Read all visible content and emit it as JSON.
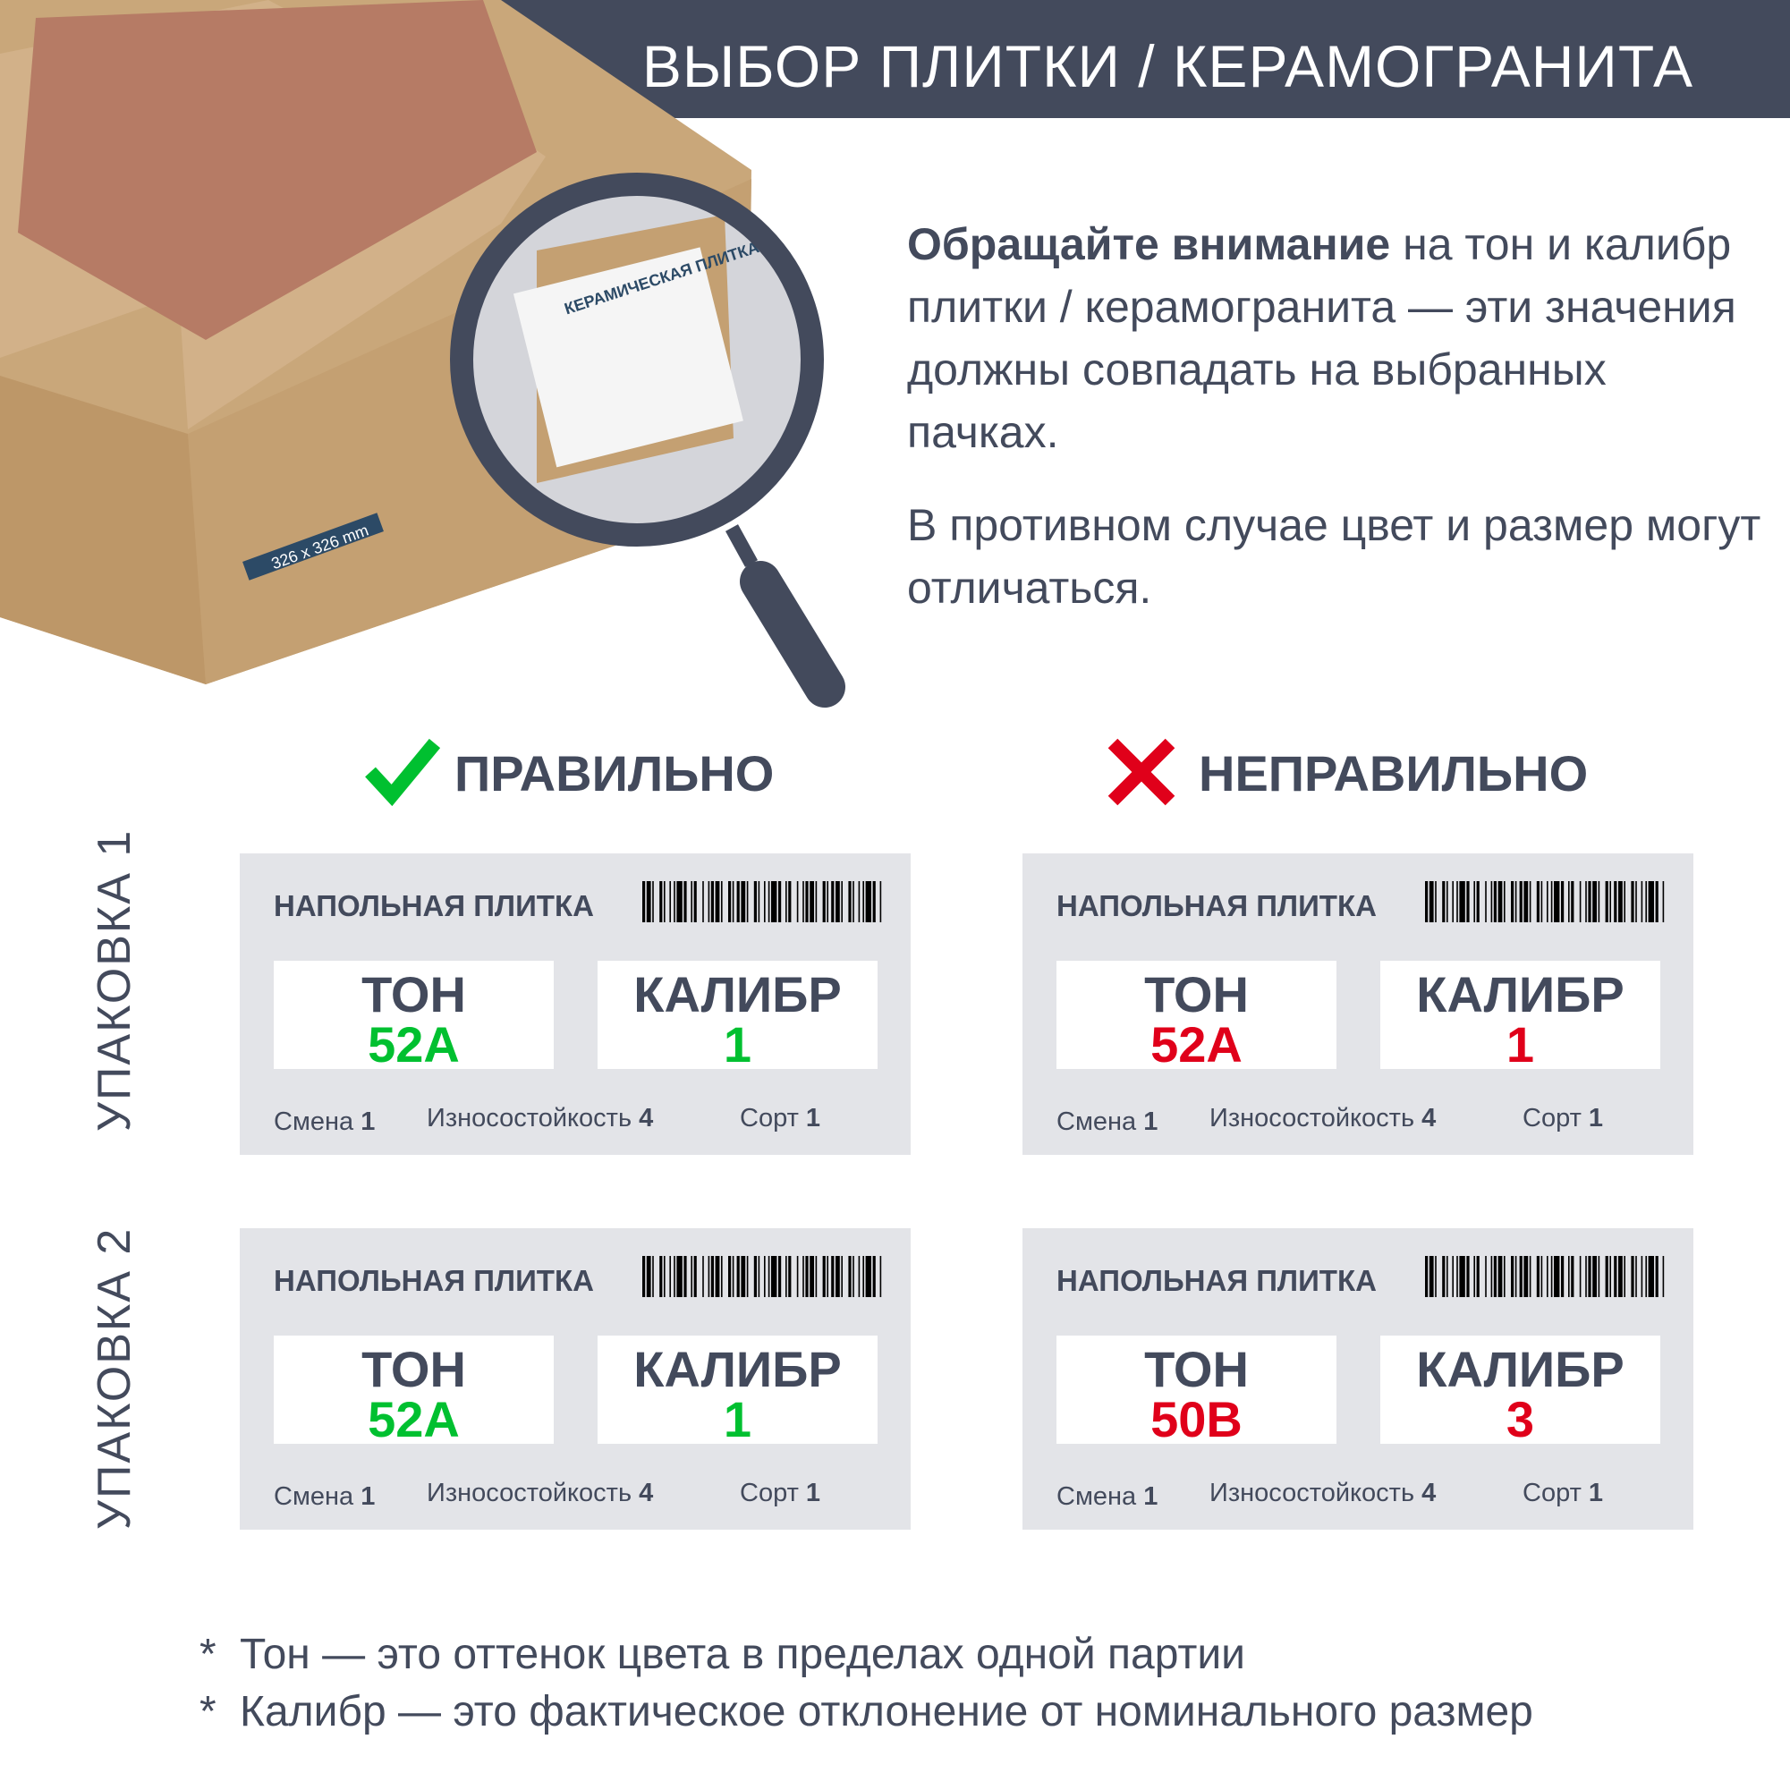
{
  "header": {
    "title": "ВЫБОР ПЛИТКИ / КЕРАМОГРАНИТА"
  },
  "photo": {
    "box_text": "КЕРАМИЧЕСКАЯ ПЛИТКА",
    "size_text": "326 x 326 mm"
  },
  "intro": {
    "bold": "Обращайте внимание",
    "rest": " на тон и калибр плитки / керамогранита — эти значения должны совпадать на выбранных пачках.",
    "second": "В противном случае цвет и размер могут отличаться."
  },
  "verdicts": {
    "correct": "ПРАВИЛЬНО",
    "wrong": "НЕПРАВИЛЬНО"
  },
  "rows": [
    "УПАКОВКА 1",
    "УПАКОВКА 2"
  ],
  "colors": {
    "dark": "#434a5c",
    "green": "#00c030",
    "red": "#e0001a",
    "card": "#e3e4e8"
  },
  "cards": [
    {
      "title": "НАПОЛЬНАЯ ПЛИТКА",
      "tone_label": "ТОН",
      "tone": "52A",
      "caliber_label": "КАЛИБР",
      "caliber": "1",
      "color": "green",
      "shift_label": "Смена",
      "shift": "1",
      "wear_label": "Износостойкость",
      "wear": "4",
      "grade_label": "Сорт",
      "grade": "1"
    },
    {
      "title": "НАПОЛЬНАЯ ПЛИТКА",
      "tone_label": "ТОН",
      "tone": "52A",
      "caliber_label": "КАЛИБР",
      "caliber": "1",
      "color": "red",
      "shift_label": "Смена",
      "shift": "1",
      "wear_label": "Износостойкость",
      "wear": "4",
      "grade_label": "Сорт",
      "grade": "1"
    },
    {
      "title": "НАПОЛЬНАЯ ПЛИТКА",
      "tone_label": "ТОН",
      "tone": "52A",
      "caliber_label": "КАЛИБР",
      "caliber": "1",
      "color": "green",
      "shift_label": "Смена",
      "shift": "1",
      "wear_label": "Износостойкость",
      "wear": "4",
      "grade_label": "Сорт",
      "grade": "1"
    },
    {
      "title": "НАПОЛЬНАЯ ПЛИТКА",
      "tone_label": "ТОН",
      "tone": "50B",
      "caliber_label": "КАЛИБР",
      "caliber": "3",
      "color": "red",
      "shift_label": "Смена",
      "shift": "1",
      "wear_label": "Износостойкость",
      "wear": "4",
      "grade_label": "Сорт",
      "grade": "1"
    }
  ],
  "notes": [
    {
      "star": "*",
      "term": "Тон",
      "text": "  — это оттенок цвета в пределах одной партии"
    },
    {
      "star": "*",
      "term": "Калибр",
      "text": "  — это фактическое отклонение от номинального размер"
    }
  ]
}
